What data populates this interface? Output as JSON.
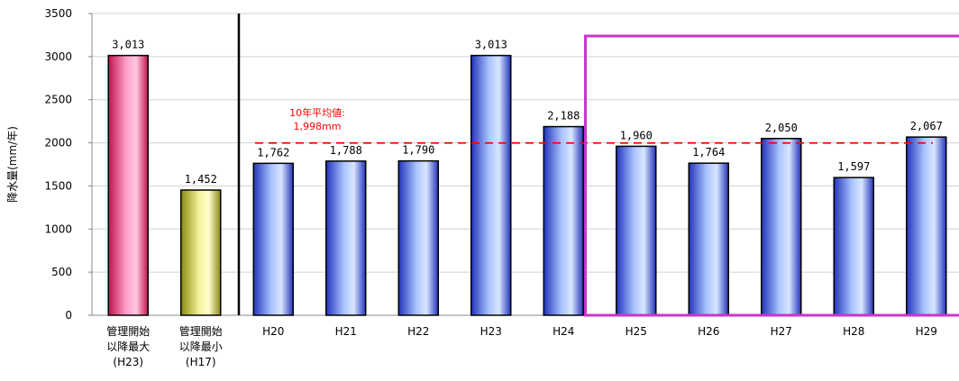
{
  "chart_data": {
    "type": "bar",
    "ylabel": "降水量(mm/年)",
    "ylim": [
      0,
      3500
    ],
    "yticks": [
      0,
      500,
      1000,
      1500,
      2000,
      2500,
      3000,
      3500
    ],
    "grid": true,
    "categories": [
      [
        "管理開始",
        "以降最大",
        "(H23)"
      ],
      [
        "管理開始",
        "以降最小",
        "(H17)"
      ],
      [
        "H20"
      ],
      [
        "H21"
      ],
      [
        "H22"
      ],
      [
        "H23"
      ],
      [
        "H24"
      ],
      [
        "H25"
      ],
      [
        "H26"
      ],
      [
        "H27"
      ],
      [
        "H28"
      ],
      [
        "H29"
      ]
    ],
    "values": [
      3013,
      1452,
      1762,
      1788,
      1790,
      3013,
      2188,
      1960,
      1764,
      2050,
      1597,
      2067
    ],
    "value_labels": [
      "3,013",
      "1,452",
      "1,762",
      "1,788",
      "1,790",
      "3,013",
      "2,188",
      "1,960",
      "1,764",
      "2,050",
      "1,597",
      "2,067"
    ],
    "bar_colors": [
      "pink",
      "yellow",
      "blue",
      "blue",
      "blue",
      "blue",
      "blue",
      "blue",
      "blue",
      "blue",
      "blue",
      "blue"
    ],
    "average": {
      "value": 1998,
      "label_line1": "10年平均値:",
      "label_line2": "1,998mm",
      "color": "#ff0000"
    },
    "highlight_box_color": "#cc33cc",
    "colors": {
      "pink": [
        "#c0144a",
        "#ff9fcb",
        "#ffc8e0"
      ],
      "yellow": [
        "#8a8a10",
        "#f2f29a",
        "#ffffd0"
      ],
      "blue": [
        "#2233bb",
        "#aac4ff",
        "#d9e6ff"
      ]
    }
  }
}
